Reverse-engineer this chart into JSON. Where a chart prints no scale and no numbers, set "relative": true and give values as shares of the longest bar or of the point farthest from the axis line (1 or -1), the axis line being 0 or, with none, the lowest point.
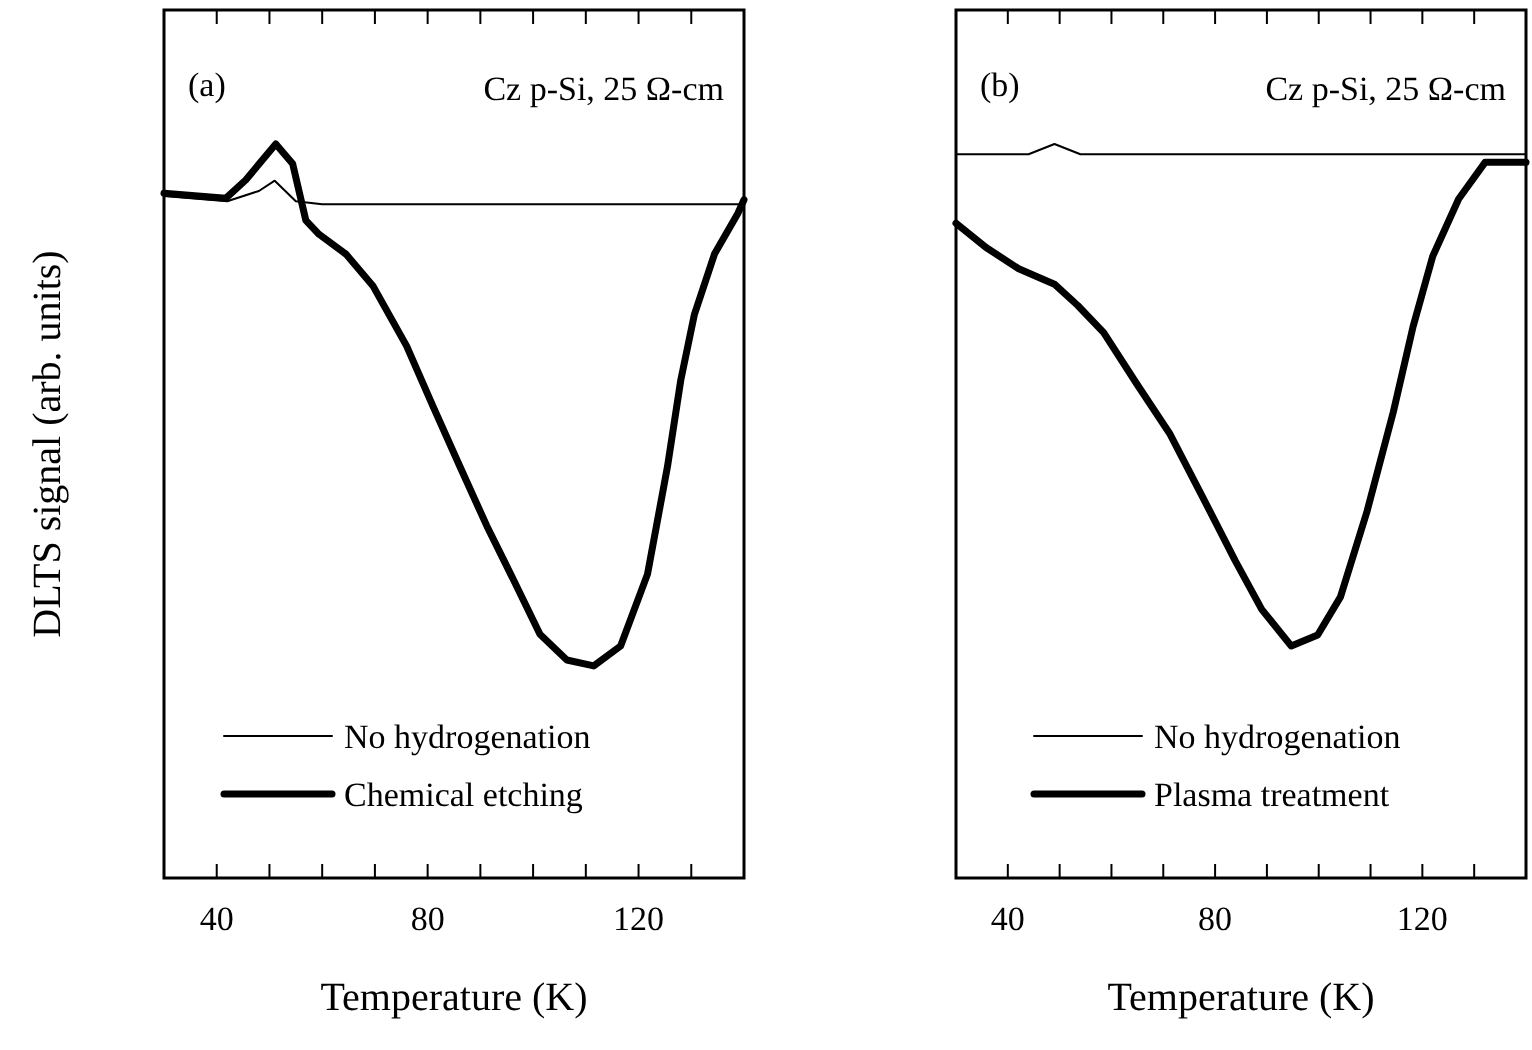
{
  "chart_data": [
    {
      "type": "line",
      "relative": true,
      "xlabel": "Temperature (K)",
      "ylabel": "DLTS signal (arb. units)",
      "xlim": [
        30,
        140
      ],
      "xticks": [
        40,
        {
          "value": 50,
          "label": null
        },
        {
          "value": 60,
          "label": null
        },
        {
          "value": 70,
          "label": null
        },
        80,
        {
          "value": 90,
          "label": null
        },
        {
          "value": 100,
          "label": null
        },
        {
          "value": 110,
          "label": null
        },
        120,
        {
          "value": 130,
          "label": null
        }
      ],
      "annotations": [
        "(a)",
        "Cz p-Si, 25 Ω-cm"
      ],
      "legend": "bottom left",
      "grid": false,
      "series": [
        {
          "name": "No hydrogenation",
          "color": "#000000",
          "x": [
            30,
            42,
            48,
            51,
            55,
            60,
            80,
            100,
            120,
            140
          ],
          "values": [
            0.929,
            0.922,
            0.936,
            0.95,
            0.922,
            0.918,
            0.918,
            0.918,
            0.918,
            0.918
          ]
        },
        {
          "name": "Chemical etching",
          "color": "#000000",
          "x": [
            30,
            41.7,
            45.5,
            51.2,
            54.4,
            56.9,
            59.4,
            64.5,
            69.6,
            76,
            81,
            86.1,
            91.2,
            96.3,
            101.3,
            106.4,
            111.5,
            116.6,
            121.7,
            125.5,
            128,
            130.6,
            134.4,
            138.8,
            140
          ],
          "values": [
            0.933,
            0.926,
            0.951,
            1,
            0.973,
            0.896,
            0.877,
            0.85,
            0.807,
            0.725,
            0.643,
            0.561,
            0.48,
            0.406,
            0.332,
            0.297,
            0.289,
            0.316,
            0.414,
            0.561,
            0.678,
            0.768,
            0.85,
            0.905,
            0.924
          ]
        }
      ]
    },
    {
      "type": "line",
      "relative": true,
      "xlabel": "Temperature (K)",
      "xlim": [
        30,
        140
      ],
      "xticks": [
        40,
        {
          "value": 50,
          "label": null
        },
        {
          "value": 60,
          "label": null
        },
        {
          "value": 70,
          "label": null
        },
        80,
        {
          "value": 90,
          "label": null
        },
        {
          "value": 100,
          "label": null
        },
        {
          "value": 110,
          "label": null
        },
        120,
        {
          "value": 130,
          "label": null
        }
      ],
      "annotations": [
        "(b)",
        "Cz p-Si, 25 Ω-cm"
      ],
      "legend": "bottom left",
      "grid": false,
      "series": [
        {
          "name": "No hydrogenation",
          "color": "#000000",
          "x": [
            30,
            44,
            49,
            54,
            70,
            90,
            110,
            130,
            140
          ],
          "values": [
            0.986,
            0.986,
            1,
            0.986,
            0.986,
            0.986,
            0.986,
            0.986,
            0.986
          ]
        },
        {
          "name": "Plasma treatment",
          "color": "#000000",
          "x": [
            30,
            35.8,
            42.1,
            49,
            53.5,
            58.5,
            64.9,
            71.2,
            77.6,
            83.9,
            89,
            94.7,
            99.8,
            104.2,
            109.3,
            114.4,
            118.2,
            122,
            127,
            132.1,
            139,
            140
          ],
          "values": [
            0.892,
            0.859,
            0.83,
            0.809,
            0.78,
            0.743,
            0.673,
            0.606,
            0.519,
            0.432,
            0.366,
            0.316,
            0.331,
            0.383,
            0.499,
            0.635,
            0.751,
            0.847,
            0.925,
            0.975,
            0.975,
            0.975
          ]
        }
      ]
    }
  ]
}
